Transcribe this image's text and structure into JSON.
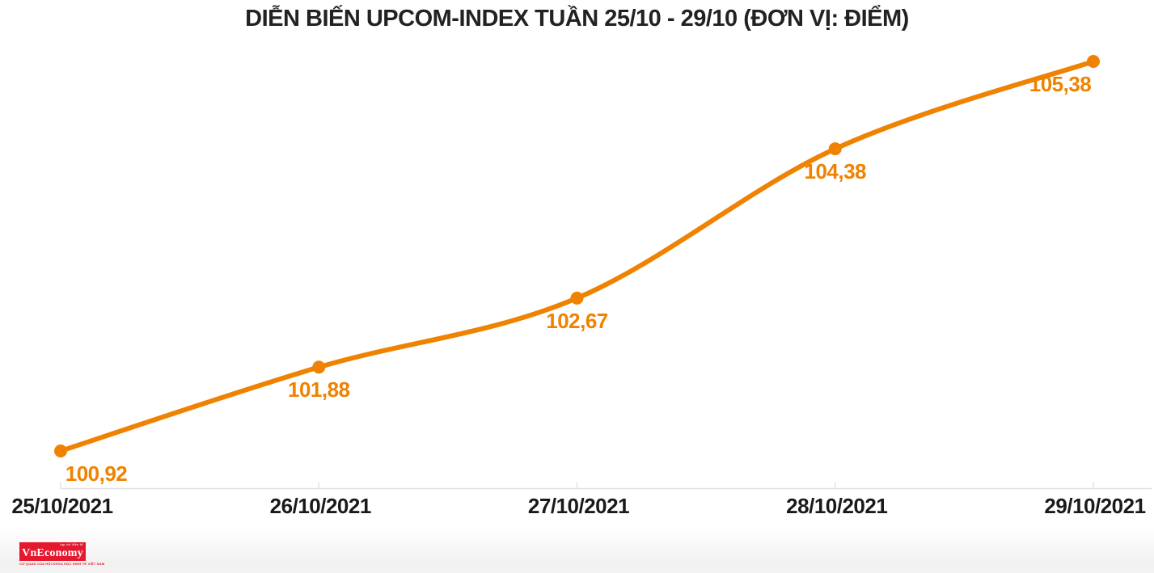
{
  "chart_data": {
    "type": "line",
    "title": "DIỄN BIẾN UPCOM-INDEX TUẦN 25/10 - 29/10 (ĐƠN VỊ: ĐIỂM)",
    "categories": [
      "25/10/2021",
      "26/10/2021",
      "27/10/2021",
      "28/10/2021",
      "29/10/2021"
    ],
    "series": [
      {
        "name": "UPCOM-INDEX",
        "values": [
          100.92,
          101.88,
          102.67,
          104.38,
          105.38
        ]
      }
    ],
    "point_labels": [
      "100,92",
      "101,88",
      "102,67",
      "104,38",
      "105,38"
    ],
    "xlabel": "",
    "ylabel": "",
    "unit": "ĐIỂM",
    "grid": false,
    "legend_position": "none",
    "line_color": "#EF8200",
    "point_label_color": "#EF8200",
    "axis_color": "#E2E2E2",
    "tick_label_color": "#1A1A1A",
    "title_color": "#222222"
  },
  "footer": {
    "logo_text": "VnEconomy",
    "logo_top_text": "tạp chí điện tử",
    "logo_bottom_text": "CƠ QUAN CỦA HỘI KHOA HỌC KINH TẾ VIỆT NAM",
    "logo_bg": "#E5192E",
    "logo_text_color": "#FFFFFF"
  }
}
